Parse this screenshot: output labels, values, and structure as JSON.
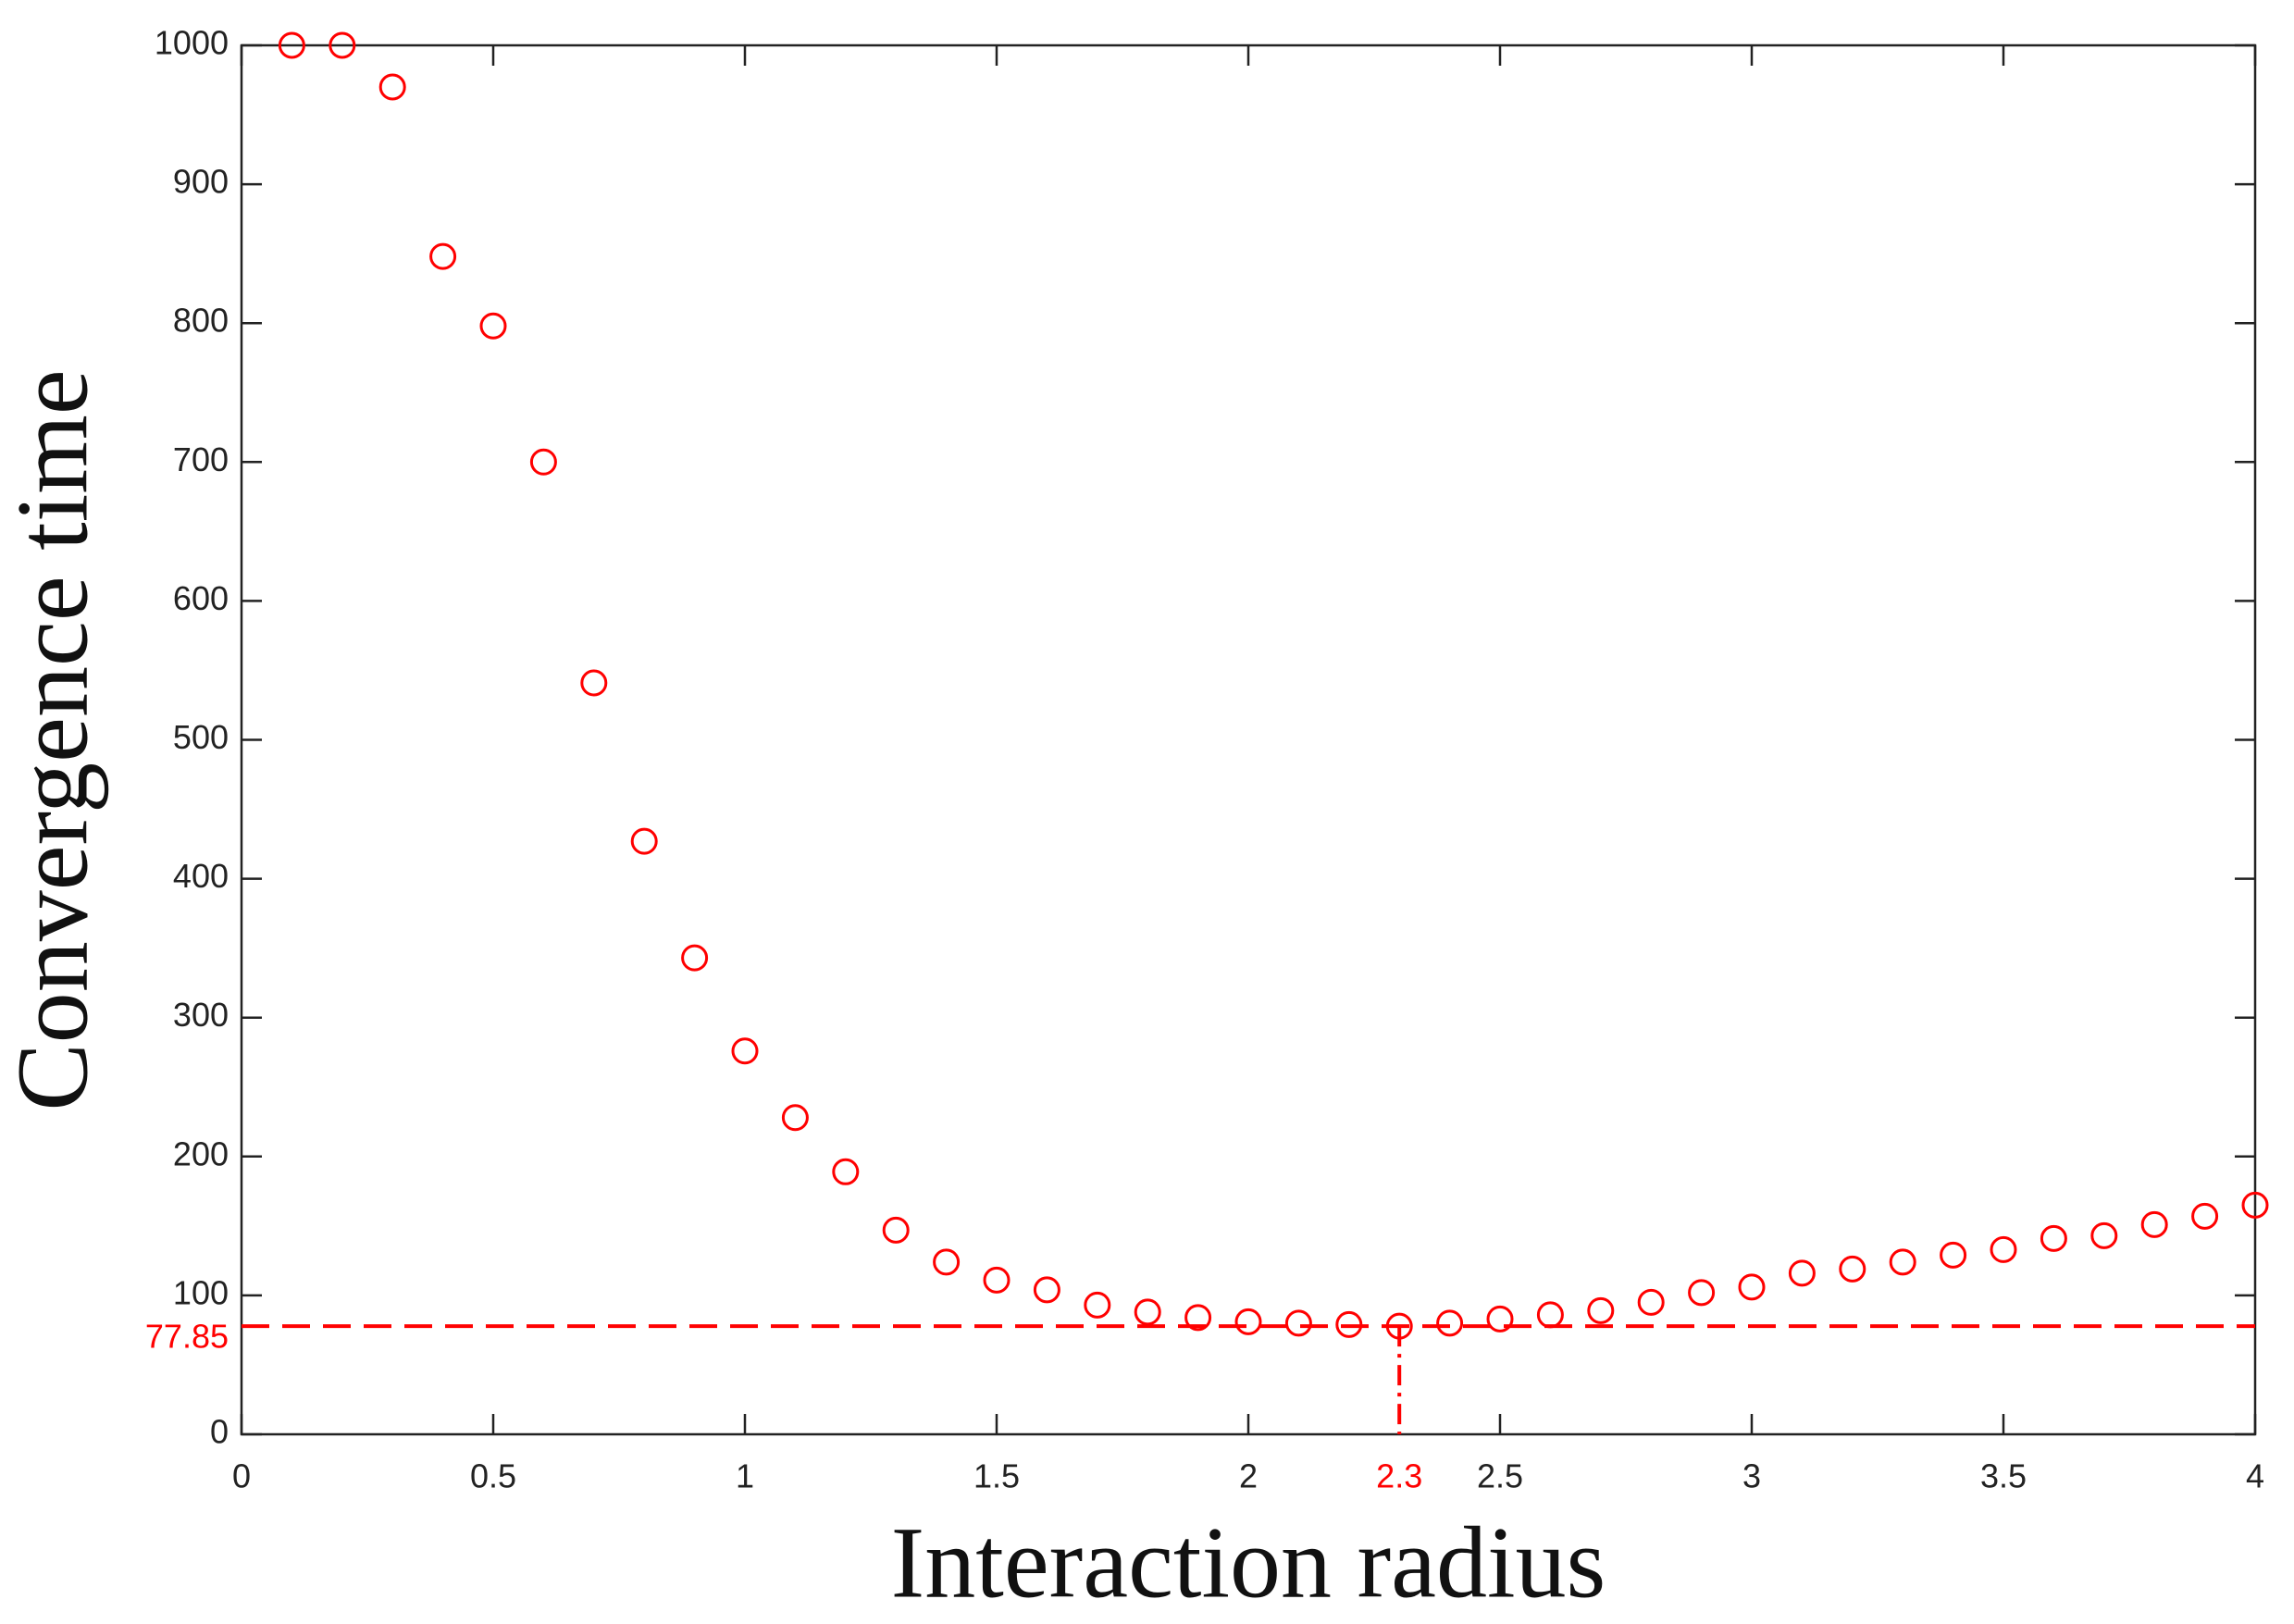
{
  "chart_data": {
    "type": "scatter",
    "xlabel": "Interaction radius",
    "ylabel": "Convergence time",
    "x": [
      0.1,
      0.2,
      0.3,
      0.4,
      0.5,
      0.6,
      0.7,
      0.8,
      0.9,
      1.0,
      1.1,
      1.2,
      1.3,
      1.4,
      1.5,
      1.6,
      1.7,
      1.8,
      1.9,
      2.0,
      2.1,
      2.2,
      2.3,
      2.4,
      2.5,
      2.6,
      2.7,
      2.8,
      2.9,
      3.0,
      3.1,
      3.2,
      3.3,
      3.4,
      3.5,
      3.6,
      3.7,
      3.8,
      3.9,
      4.0
    ],
    "values": [
      1000,
      1000,
      970,
      848,
      798,
      700,
      541,
      427,
      343,
      276,
      228,
      189,
      147,
      124,
      111,
      104,
      93,
      88,
      84,
      81,
      80,
      79,
      77.85,
      80,
      83,
      86,
      89,
      95,
      102,
      106,
      116,
      119,
      124,
      129,
      133,
      141,
      143,
      151,
      157,
      165
    ],
    "color": "#ff0000",
    "xlim": [
      0,
      4
    ],
    "xticks": [
      0,
      0.5,
      1,
      1.5,
      2,
      2.5,
      3,
      3.5,
      4
    ],
    "ylim": [
      0,
      1000
    ],
    "yticks": [
      0,
      100,
      200,
      300,
      400,
      500,
      600,
      700,
      800,
      900,
      1000
    ],
    "grid": false,
    "reference_lines": [
      {
        "axis": "y",
        "value": 77.85
      },
      {
        "axis": "x",
        "value": 2.3
      }
    ]
  }
}
